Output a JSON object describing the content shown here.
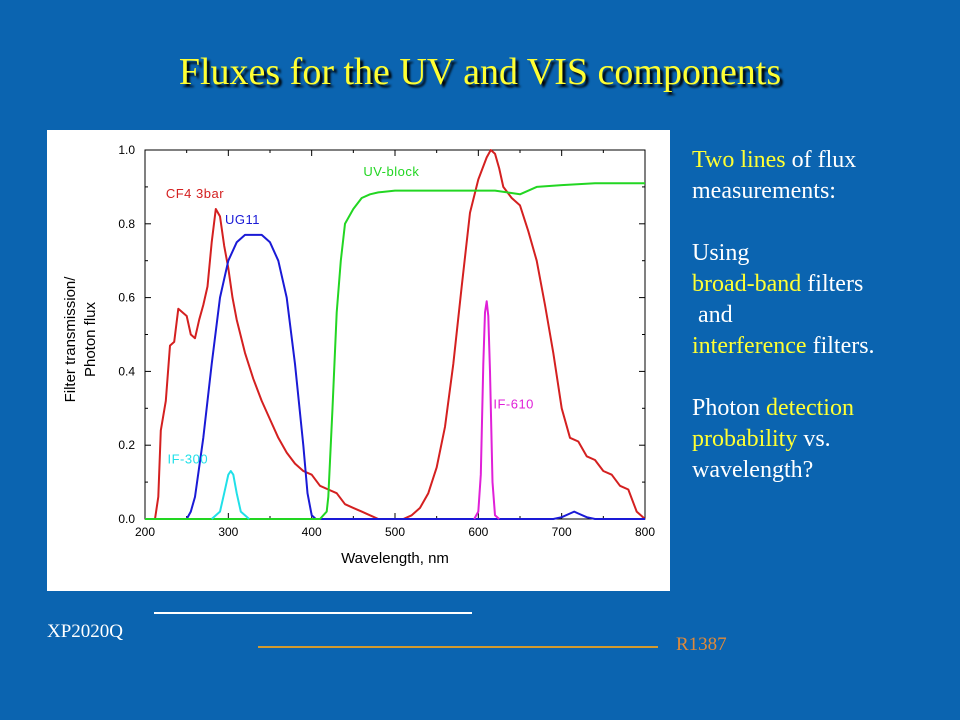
{
  "slide": {
    "title": "Fluxes for the UV and VIS components"
  },
  "colors": {
    "background": "#0b64b0",
    "title": "#ffff33",
    "highlight": "#ffff33",
    "xp_rule": "#ffffff",
    "r_rule": "#d39a2e",
    "r_label": "#e08a3a"
  },
  "notes": [
    {
      "parts": [
        {
          "t": "Two lines",
          "hl": true
        },
        {
          "t": " of flux",
          "hl": false
        }
      ]
    },
    {
      "parts": [
        {
          "t": "measurements:",
          "hl": false
        }
      ]
    },
    {
      "parts": [
        {
          "t": "",
          "hl": false
        }
      ]
    },
    {
      "parts": [
        {
          "t": "Using",
          "hl": false
        }
      ]
    },
    {
      "parts": [
        {
          "t": "broad-band",
          "hl": true
        },
        {
          "t": " filters",
          "hl": false
        }
      ]
    },
    {
      "parts": [
        {
          "t": " and",
          "hl": false
        }
      ]
    },
    {
      "parts": [
        {
          "t": "interference",
          "hl": true
        },
        {
          "t": " filters.",
          "hl": false
        }
      ]
    },
    {
      "parts": [
        {
          "t": "",
          "hl": false
        }
      ]
    },
    {
      "parts": [
        {
          "t": "Photon ",
          "hl": false
        },
        {
          "t": "detection",
          "hl": true
        }
      ]
    },
    {
      "parts": [
        {
          "t": "probability",
          "hl": true
        },
        {
          "t": " vs.",
          "hl": false
        }
      ]
    },
    {
      "parts": [
        {
          "t": "wavelength?",
          "hl": false
        }
      ]
    }
  ],
  "legend": {
    "xp_label": "XP2020Q",
    "r_label": "R1387"
  },
  "chart_data": {
    "type": "line",
    "xlabel": "Wavelength, nm",
    "ylabel": "Filter transmission/ Photon flux",
    "ylabel_lines": [
      "Filter transmission/",
      "Photon flux"
    ],
    "xlim": [
      200,
      800
    ],
    "ylim": [
      0,
      1.0
    ],
    "x_ticks": [
      200,
      300,
      400,
      500,
      600,
      700,
      800
    ],
    "y_ticks": [
      0.0,
      0.2,
      0.4,
      0.6,
      0.8,
      1.0
    ],
    "x_tick_labels": [
      "200",
      "300",
      "400",
      "500",
      "600",
      "700",
      "800"
    ],
    "y_tick_labels": [
      "0.0",
      "0.2",
      "0.4",
      "0.6",
      "0.8",
      "1.0"
    ],
    "grid": false,
    "series": [
      {
        "name": "CF4 3bar",
        "color": "#d42020",
        "x": [
          200,
          212,
          216,
          219,
          225,
          230,
          235,
          240,
          245,
          250,
          255,
          260,
          265,
          270,
          275,
          280,
          285,
          290,
          295,
          300,
          305,
          310,
          320,
          330,
          340,
          350,
          360,
          370,
          380,
          390,
          400,
          410,
          420,
          430,
          440,
          450,
          460,
          470,
          480,
          490,
          500,
          510,
          520,
          530,
          540,
          550,
          560,
          570,
          580,
          590,
          600,
          610,
          615,
          620,
          625,
          630,
          640,
          650,
          660,
          670,
          680,
          690,
          700,
          710,
          720,
          730,
          740,
          750,
          760,
          770,
          780,
          790,
          800
        ],
        "y": [
          0.0,
          0.0,
          0.06,
          0.24,
          0.32,
          0.47,
          0.48,
          0.57,
          0.56,
          0.55,
          0.5,
          0.49,
          0.54,
          0.58,
          0.63,
          0.75,
          0.84,
          0.82,
          0.74,
          0.68,
          0.6,
          0.54,
          0.45,
          0.38,
          0.32,
          0.27,
          0.22,
          0.18,
          0.15,
          0.13,
          0.12,
          0.09,
          0.08,
          0.07,
          0.04,
          0.03,
          0.02,
          0.01,
          0.0,
          0.0,
          0.0,
          0.0,
          0.01,
          0.03,
          0.07,
          0.14,
          0.25,
          0.42,
          0.63,
          0.83,
          0.92,
          0.98,
          1.0,
          0.99,
          0.95,
          0.9,
          0.87,
          0.85,
          0.78,
          0.7,
          0.58,
          0.45,
          0.3,
          0.22,
          0.21,
          0.17,
          0.16,
          0.13,
          0.12,
          0.09,
          0.08,
          0.02,
          0.0
        ]
      },
      {
        "name": "UG11",
        "color": "#1a1ad6",
        "x": [
          200,
          250,
          255,
          260,
          270,
          280,
          290,
          300,
          310,
          320,
          330,
          340,
          350,
          360,
          370,
          380,
          390,
          395,
          400,
          405,
          410,
          420,
          430,
          440,
          450,
          460,
          470,
          480,
          490,
          500,
          550,
          600,
          650,
          690,
          700,
          710,
          715,
          720,
          730,
          740,
          750,
          800
        ],
        "y": [
          0.0,
          0.0,
          0.02,
          0.06,
          0.22,
          0.42,
          0.6,
          0.7,
          0.75,
          0.77,
          0.77,
          0.77,
          0.75,
          0.7,
          0.6,
          0.42,
          0.2,
          0.07,
          0.01,
          0.0,
          0.0,
          0.0,
          0.0,
          0.0,
          0.0,
          0.0,
          0.0,
          0.0,
          0.0,
          0.0,
          0.0,
          0.0,
          0.0,
          0.0,
          0.005,
          0.015,
          0.02,
          0.015,
          0.005,
          0.0,
          0.0,
          0.0
        ]
      },
      {
        "name": "UV-block",
        "color": "#22d622",
        "x": [
          200,
          410,
          418,
          420,
          425,
          430,
          435,
          440,
          450,
          460,
          470,
          480,
          500,
          540,
          580,
          620,
          650,
          670,
          700,
          740,
          780,
          800
        ],
        "y": [
          0.0,
          0.0,
          0.02,
          0.06,
          0.3,
          0.56,
          0.7,
          0.8,
          0.84,
          0.87,
          0.88,
          0.885,
          0.89,
          0.89,
          0.89,
          0.89,
          0.88,
          0.9,
          0.905,
          0.91,
          0.91,
          0.91
        ]
      },
      {
        "name": "IF-300",
        "color": "#20e0e8",
        "x": [
          280,
          290,
          295,
          300,
          303,
          306,
          310,
          315,
          325
        ],
        "y": [
          0.0,
          0.02,
          0.07,
          0.12,
          0.13,
          0.12,
          0.07,
          0.02,
          0.0
        ]
      },
      {
        "name": "IF-610",
        "color": "#e020d8",
        "x": [
          595,
          600,
          603,
          606,
          608,
          610,
          612,
          614,
          617,
          620,
          625
        ],
        "y": [
          0.0,
          0.02,
          0.12,
          0.42,
          0.56,
          0.59,
          0.55,
          0.4,
          0.1,
          0.01,
          0.0
        ]
      }
    ],
    "annotations": [
      {
        "text": "CF4 3bar",
        "series": "CF4 3bar",
        "color": "#d42020",
        "x": 225,
        "y": 0.87
      },
      {
        "text": "UG11",
        "series": "UG11",
        "color": "#1a1ad6",
        "x": 296,
        "y": 0.8
      },
      {
        "text": "UV-block",
        "series": "UV-block",
        "color": "#22d622",
        "x": 462,
        "y": 0.93
      },
      {
        "text": "IF-300",
        "series": "IF-300",
        "color": "#20e0e8",
        "x": 227,
        "y": 0.15
      },
      {
        "text": "IF-610",
        "series": "IF-610",
        "color": "#e020d8",
        "x": 618,
        "y": 0.3
      }
    ]
  }
}
